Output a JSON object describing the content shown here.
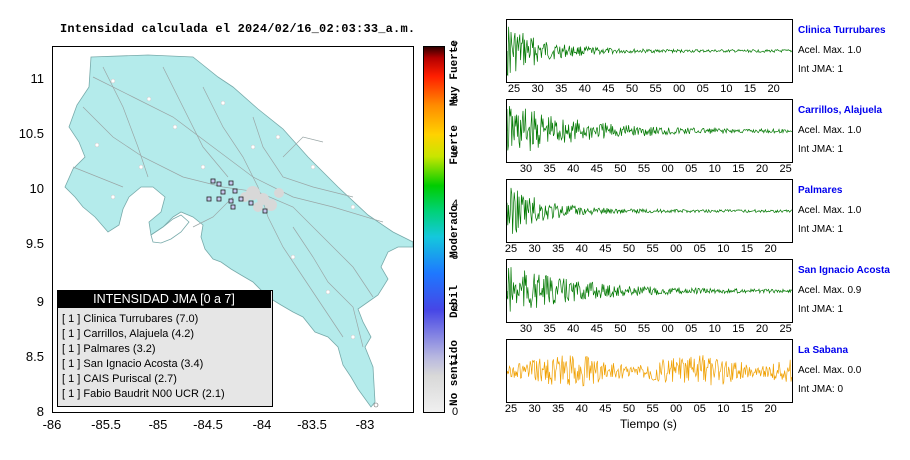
{
  "map": {
    "title": "Intensidad calculada el 2024/02/16_02:03:33_a.m.",
    "y_ticks": [
      "11",
      "10.5",
      "10",
      "9.5",
      "9",
      "8.5",
      "8"
    ],
    "x_ticks": [
      "-86",
      "-85.5",
      "-85",
      "-84.5",
      "-84",
      "-83.5",
      "-83"
    ],
    "land_color": "#b4ebeb",
    "legend": {
      "title": "INTENSIDAD JMA [0 a 7]",
      "rows": [
        "[ 1 ]  Clinica Turrubares (7.0)",
        "[ 1 ]  Carrillos, Alajuela (4.2)",
        "[ 1 ]  Palmares (3.2)",
        "[ 1 ]  San Ignacio Acosta (3.4)",
        "[ 1 ]  CAIS Puriscal (2.7)",
        "[ 1 ]  Fabio Baudrit N00 UCR (2.1)"
      ]
    }
  },
  "scale": {
    "numbers": [
      "7",
      "6",
      "5",
      "4",
      "3",
      "2",
      "1",
      "0"
    ],
    "words": [
      "Muy Fuerte",
      "Fuerte",
      "Moderado",
      "Debil",
      "No sentido"
    ]
  },
  "waveforms": {
    "x_axis_label": "Tiempo (s)",
    "panels": [
      {
        "station": "Clinica Turrubares",
        "acel": "Acel. Max. 1.0",
        "int": "Int JMA: 1",
        "color": "#007800",
        "ticks": [
          "25",
          "30",
          "35",
          "40",
          "45",
          "50",
          "55",
          "00",
          "05",
          "10",
          "15",
          "20"
        ]
      },
      {
        "station": "Carrillos, Alajuela",
        "acel": "Acel. Max. 1.0",
        "int": "Int JMA: 1",
        "color": "#007800",
        "ticks": [
          "30",
          "35",
          "40",
          "45",
          "50",
          "55",
          "00",
          "05",
          "10",
          "15",
          "20",
          "25"
        ]
      },
      {
        "station": "Palmares",
        "acel": "Acel. Max. 1.0",
        "int": "Int JMA: 1",
        "color": "#007800",
        "ticks": [
          "25",
          "30",
          "35",
          "40",
          "45",
          "50",
          "55",
          "00",
          "05",
          "10",
          "15",
          "20"
        ]
      },
      {
        "station": "San Ignacio Acosta",
        "acel": "Acel. Max. 0.9",
        "int": "Int JMA: 1",
        "color": "#007800",
        "ticks": [
          "30",
          "35",
          "40",
          "45",
          "50",
          "55",
          "00",
          "05",
          "10",
          "15",
          "20",
          "25"
        ]
      },
      {
        "station": "La Sabana",
        "acel": "Acel. Max. 0.0",
        "int": "Int JMA: 0",
        "color": "#f0a000",
        "ticks": [
          "25",
          "30",
          "35",
          "40",
          "45",
          "50",
          "55",
          "00",
          "05",
          "10",
          "15",
          "20"
        ]
      }
    ]
  }
}
